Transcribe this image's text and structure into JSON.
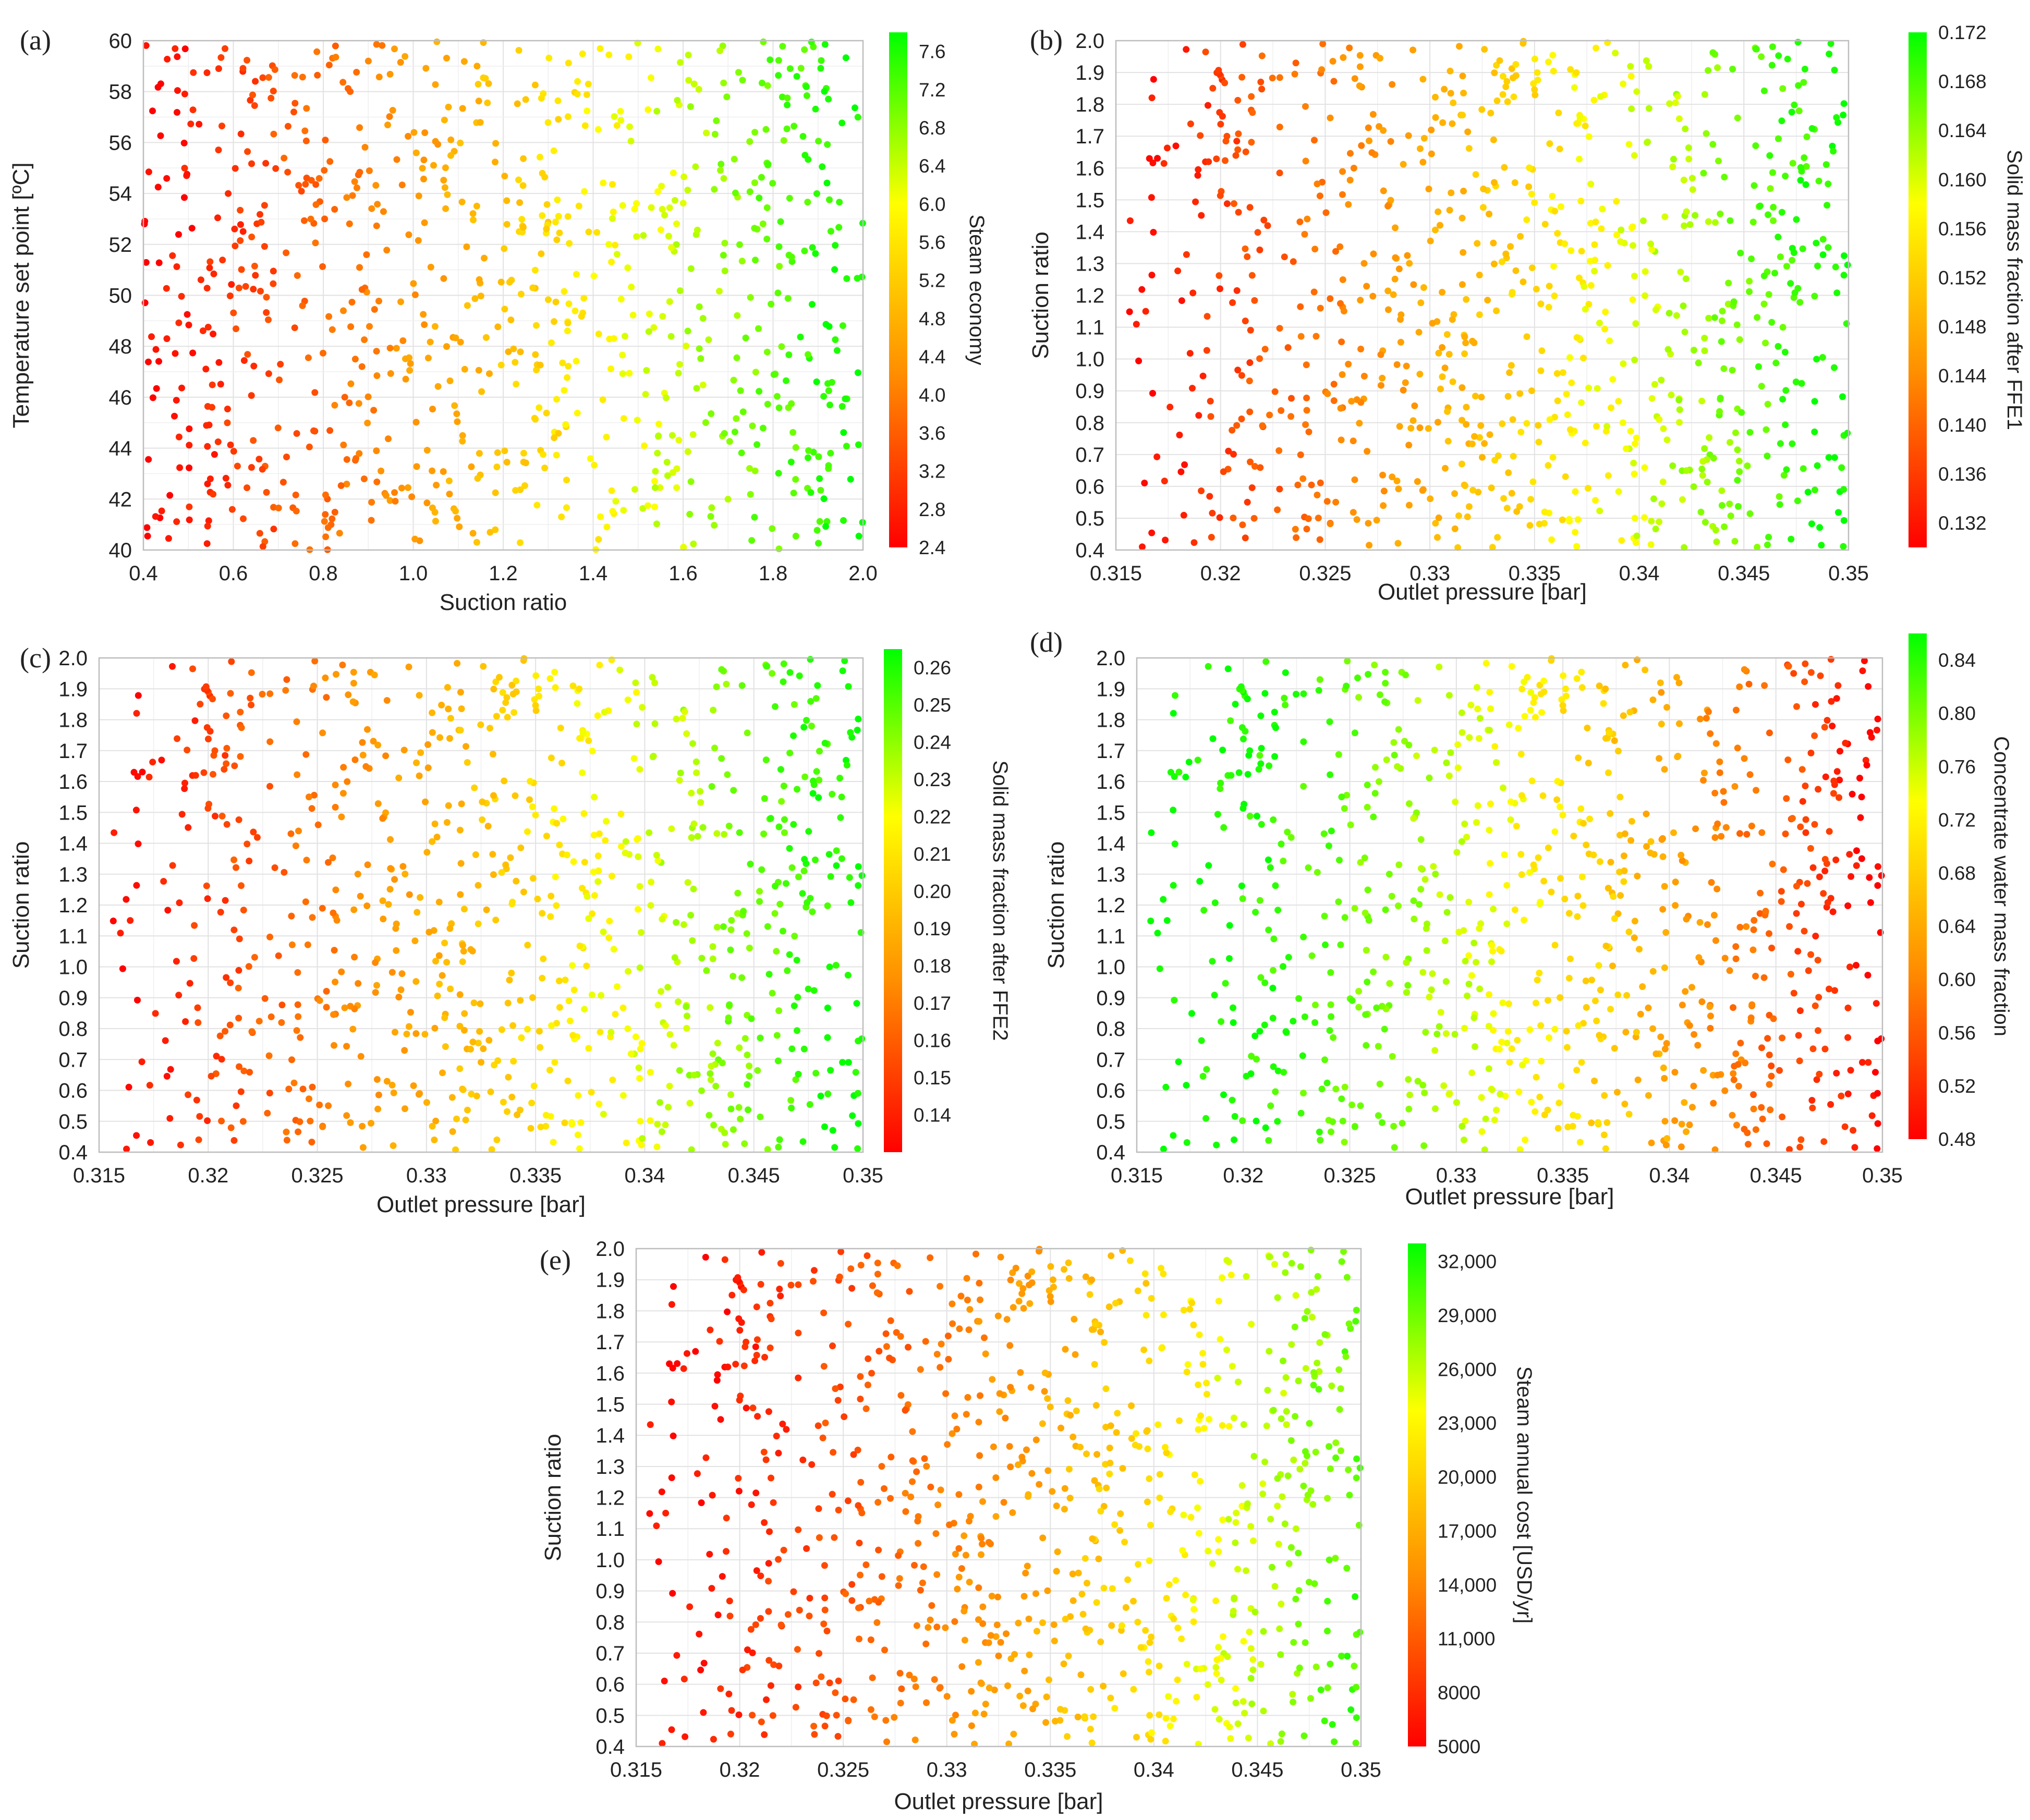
{
  "figure": {
    "description_free": true
  },
  "chart_data": [
    {
      "id": "a",
      "panel_label": "(a)",
      "type": "scatter",
      "xlabel": "Suction ratio",
      "ylabel": "Temperature set point [ºC]",
      "xlim": [
        0.4,
        2.0
      ],
      "ylim": [
        40,
        60
      ],
      "xticks": [
        0.4,
        0.6,
        0.8,
        1.0,
        1.2,
        1.4,
        1.6,
        1.8,
        2.0
      ],
      "xtick_labels": [
        "0.4",
        "0.6",
        "0.8",
        "1.0",
        "1.2",
        "1.4",
        "1.6",
        "1.8",
        "2.0"
      ],
      "yticks": [
        40,
        42,
        44,
        46,
        48,
        50,
        52,
        54,
        56,
        58,
        60
      ],
      "ytick_labels": [
        "40",
        "42",
        "44",
        "46",
        "48",
        "50",
        "52",
        "54",
        "56",
        "58",
        "60"
      ],
      "colorbar": {
        "label": "Steam economy",
        "min": 2.4,
        "max": 7.8,
        "ticks": [
          2.4,
          2.8,
          3.2,
          3.6,
          4.0,
          4.4,
          4.8,
          5.2,
          5.6,
          6.0,
          6.4,
          6.8,
          7.2,
          7.6
        ],
        "tick_labels": [
          "2.4",
          "2.8",
          "3.2",
          "3.6",
          "4.0",
          "4.4",
          "4.8",
          "5.2",
          "5.6",
          "6.0",
          "6.4",
          "6.8",
          "7.2",
          "7.6"
        ],
        "colors": [
          "#ff0000",
          "#ff8c00",
          "#ffff00",
          "#00ff00"
        ]
      },
      "point_count": 900,
      "color_variable": "x",
      "color_trend": "increasing",
      "seed": 11
    },
    {
      "id": "b",
      "panel_label": "(b)",
      "type": "scatter",
      "xlabel": "Outlet pressure [bar]",
      "ylabel": "Suction ratio",
      "xlim": [
        0.315,
        0.35
      ],
      "ylim": [
        0.4,
        2.0
      ],
      "xticks": [
        0.315,
        0.32,
        0.325,
        0.33,
        0.335,
        0.34,
        0.345,
        0.35
      ],
      "xtick_labels": [
        "0.315",
        "0.32",
        "0.325",
        "0.33",
        "0.335",
        "0.34",
        "0.345",
        "0.35"
      ],
      "yticks": [
        0.4,
        0.5,
        0.6,
        0.7,
        0.8,
        0.9,
        1.0,
        1.1,
        1.2,
        1.3,
        1.4,
        1.5,
        1.6,
        1.7,
        1.8,
        1.9,
        2.0
      ],
      "ytick_labels": [
        "0.4",
        "0.5",
        "0.6",
        "0.7",
        "0.8",
        "0.9",
        "1.0",
        "1.1",
        "1.2",
        "1.3",
        "1.4",
        "1.5",
        "1.6",
        "1.7",
        "1.8",
        "1.9",
        "2.0"
      ],
      "colorbar": {
        "label": "Solid mass fraction after FFE1",
        "min": 0.13,
        "max": 0.172,
        "ticks": [
          0.132,
          0.136,
          0.14,
          0.144,
          0.148,
          0.152,
          0.156,
          0.16,
          0.164,
          0.168,
          0.172
        ],
        "tick_labels": [
          "0.132",
          "0.136",
          "0.140",
          "0.144",
          "0.148",
          "0.152",
          "0.156",
          "0.160",
          "0.164",
          "0.168",
          "0.172"
        ],
        "colors": [
          "#ff0000",
          "#ff8c00",
          "#ffff00",
          "#00ff00"
        ]
      },
      "point_count": 900,
      "color_variable": "x",
      "color_trend": "increasing",
      "seed": 23
    },
    {
      "id": "c",
      "panel_label": "(c)",
      "type": "scatter",
      "xlabel": "Outlet pressure [bar]",
      "ylabel": "Suction ratio",
      "xlim": [
        0.315,
        0.35
      ],
      "ylim": [
        0.4,
        2.0
      ],
      "xticks": [
        0.315,
        0.32,
        0.325,
        0.33,
        0.335,
        0.34,
        0.345,
        0.35
      ],
      "xtick_labels": [
        "0.315",
        "0.32",
        "0.325",
        "0.33",
        "0.335",
        "0.34",
        "0.345",
        "0.35"
      ],
      "yticks": [
        0.4,
        0.5,
        0.6,
        0.7,
        0.8,
        0.9,
        1.0,
        1.1,
        1.2,
        1.3,
        1.4,
        1.5,
        1.6,
        1.7,
        1.8,
        1.9,
        2.0
      ],
      "ytick_labels": [
        "0.4",
        "0.5",
        "0.6",
        "0.7",
        "0.8",
        "0.9",
        "1.0",
        "1.1",
        "1.2",
        "1.3",
        "1.4",
        "1.5",
        "1.6",
        "1.7",
        "1.8",
        "1.9",
        "2.0"
      ],
      "colorbar": {
        "label": "Solid mass fraction after FFE2",
        "min": 0.13,
        "max": 0.265,
        "ticks": [
          0.14,
          0.15,
          0.16,
          0.17,
          0.18,
          0.19,
          0.2,
          0.21,
          0.22,
          0.23,
          0.24,
          0.25,
          0.26
        ],
        "tick_labels": [
          "0.14",
          "0.15",
          "0.16",
          "0.17",
          "0.18",
          "0.19",
          "0.20",
          "0.21",
          "0.22",
          "0.23",
          "0.24",
          "0.25",
          "0.26"
        ],
        "colors": [
          "#ff0000",
          "#ff8c00",
          "#ffff00",
          "#00ff00"
        ]
      },
      "point_count": 900,
      "color_variable": "x",
      "color_trend": "increasing",
      "seed": 23
    },
    {
      "id": "d",
      "panel_label": "(d)",
      "type": "scatter",
      "xlabel": "Outlet pressure [bar]",
      "ylabel": "Suction ratio",
      "xlim": [
        0.315,
        0.35
      ],
      "ylim": [
        0.4,
        2.0
      ],
      "xticks": [
        0.315,
        0.32,
        0.325,
        0.33,
        0.335,
        0.34,
        0.345,
        0.35
      ],
      "xtick_labels": [
        "0.315",
        "0.32",
        "0.325",
        "0.33",
        "0.335",
        "0.34",
        "0.345",
        "0.35"
      ],
      "yticks": [
        0.4,
        0.5,
        0.6,
        0.7,
        0.8,
        0.9,
        1.0,
        1.1,
        1.2,
        1.3,
        1.4,
        1.5,
        1.6,
        1.7,
        1.8,
        1.9,
        2.0
      ],
      "ytick_labels": [
        "0.4",
        "0.5",
        "0.6",
        "0.7",
        "0.8",
        "0.9",
        "1.0",
        "1.1",
        "1.2",
        "1.3",
        "1.4",
        "1.5",
        "1.6",
        "1.7",
        "1.8",
        "1.9",
        "2.0"
      ],
      "colorbar": {
        "label": "Concentrate water mass fraction",
        "min": 0.48,
        "max": 0.86,
        "ticks": [
          0.48,
          0.52,
          0.56,
          0.6,
          0.64,
          0.68,
          0.72,
          0.76,
          0.8,
          0.84
        ],
        "tick_labels": [
          "0.48",
          "0.52",
          "0.56",
          "0.60",
          "0.64",
          "0.68",
          "0.72",
          "0.76",
          "0.80",
          "0.84"
        ],
        "colors": [
          "#ff0000",
          "#ff8c00",
          "#ffff00",
          "#00ff00"
        ]
      },
      "point_count": 900,
      "color_variable": "x",
      "color_trend": "decreasing",
      "seed": 23
    },
    {
      "id": "e",
      "panel_label": "(e)",
      "type": "scatter",
      "xlabel": "Outlet pressure [bar]",
      "ylabel": "Suction ratio",
      "xlim": [
        0.315,
        0.35
      ],
      "ylim": [
        0.4,
        2.0
      ],
      "xticks": [
        0.315,
        0.32,
        0.325,
        0.33,
        0.335,
        0.34,
        0.345,
        0.35
      ],
      "xtick_labels": [
        "0.315",
        "0.32",
        "0.325",
        "0.33",
        "0.335",
        "0.34",
        "0.345",
        "0.35"
      ],
      "yticks": [
        0.4,
        0.5,
        0.6,
        0.7,
        0.8,
        0.9,
        1.0,
        1.1,
        1.2,
        1.3,
        1.4,
        1.5,
        1.6,
        1.7,
        1.8,
        1.9,
        2.0
      ],
      "ytick_labels": [
        "0.4",
        "0.5",
        "0.6",
        "0.7",
        "0.8",
        "0.9",
        "1.0",
        "1.1",
        "1.2",
        "1.3",
        "1.4",
        "1.5",
        "1.6",
        "1.7",
        "1.8",
        "1.9",
        "2.0"
      ],
      "colorbar": {
        "label": "Steam annual cost [USD/yr]",
        "min": 5000,
        "max": 33000,
        "ticks": [
          5000,
          8000,
          11000,
          14000,
          17000,
          20000,
          23000,
          26000,
          29000,
          32000
        ],
        "tick_labels": [
          "5000",
          "8000",
          "11,000",
          "14,000",
          "17,000",
          "20,000",
          "23,000",
          "26,000",
          "29,000",
          "32,000"
        ],
        "colors": [
          "#ff0000",
          "#ff8c00",
          "#ffff00",
          "#00ff00"
        ]
      },
      "point_count": 900,
      "color_variable": "x",
      "color_trend": "increasing_late",
      "seed": 23
    }
  ]
}
